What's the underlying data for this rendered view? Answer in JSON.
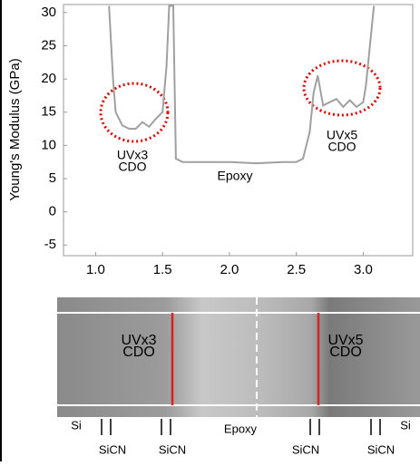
{
  "chart_data": {
    "type": "line",
    "ylabel": "Young's Modulus (GPa)",
    "x": [
      1.1,
      1.13,
      1.15,
      1.2,
      1.25,
      1.3,
      1.35,
      1.4,
      1.45,
      1.5,
      1.53,
      1.55,
      1.58,
      1.6,
      1.65,
      1.8,
      2.0,
      2.2,
      2.4,
      2.5,
      2.55,
      2.6,
      2.63,
      2.66,
      2.7,
      2.75,
      2.8,
      2.85,
      2.9,
      2.95,
      3.0,
      3.02,
      3.05,
      3.08
    ],
    "values": [
      31,
      20,
      15,
      13,
      12.5,
      12.5,
      13.5,
      12.8,
      14,
      15,
      22,
      31,
      31,
      8,
      7.5,
      7.5,
      7.5,
      7.3,
      7.5,
      7.5,
      8,
      12,
      18,
      20.5,
      16,
      16.5,
      17,
      15.8,
      16.8,
      15.8,
      16.5,
      19,
      25,
      31
    ],
    "color": "#a0a0a0",
    "xlim": [
      0.76,
      3.37
    ],
    "ylim": [
      -6.6,
      31.2
    ],
    "xticks": [
      {
        "value": 1,
        "label": "1.0"
      },
      1.5,
      {
        "value": 2,
        "label": "2.0"
      },
      2.5,
      {
        "value": 3,
        "label": "3.0"
      }
    ],
    "yticks": [
      -5,
      0,
      5,
      10,
      15,
      20,
      25,
      30
    ],
    "annotations": [
      [
        "UVx3",
        "CDO"
      ],
      [
        "Epoxy"
      ],
      [
        "UVx5",
        "CDO"
      ]
    ]
  },
  "image_panel": {
    "overlay_labels": [
      [
        "UVx3",
        "CDO"
      ],
      [
        "UVx5",
        "CDO"
      ]
    ],
    "top_labels": [
      "Si",
      "Epoxy",
      "Si"
    ],
    "bottom_labels": [
      "SiCN",
      "SiCN",
      "SiCN",
      "SiCN"
    ]
  }
}
